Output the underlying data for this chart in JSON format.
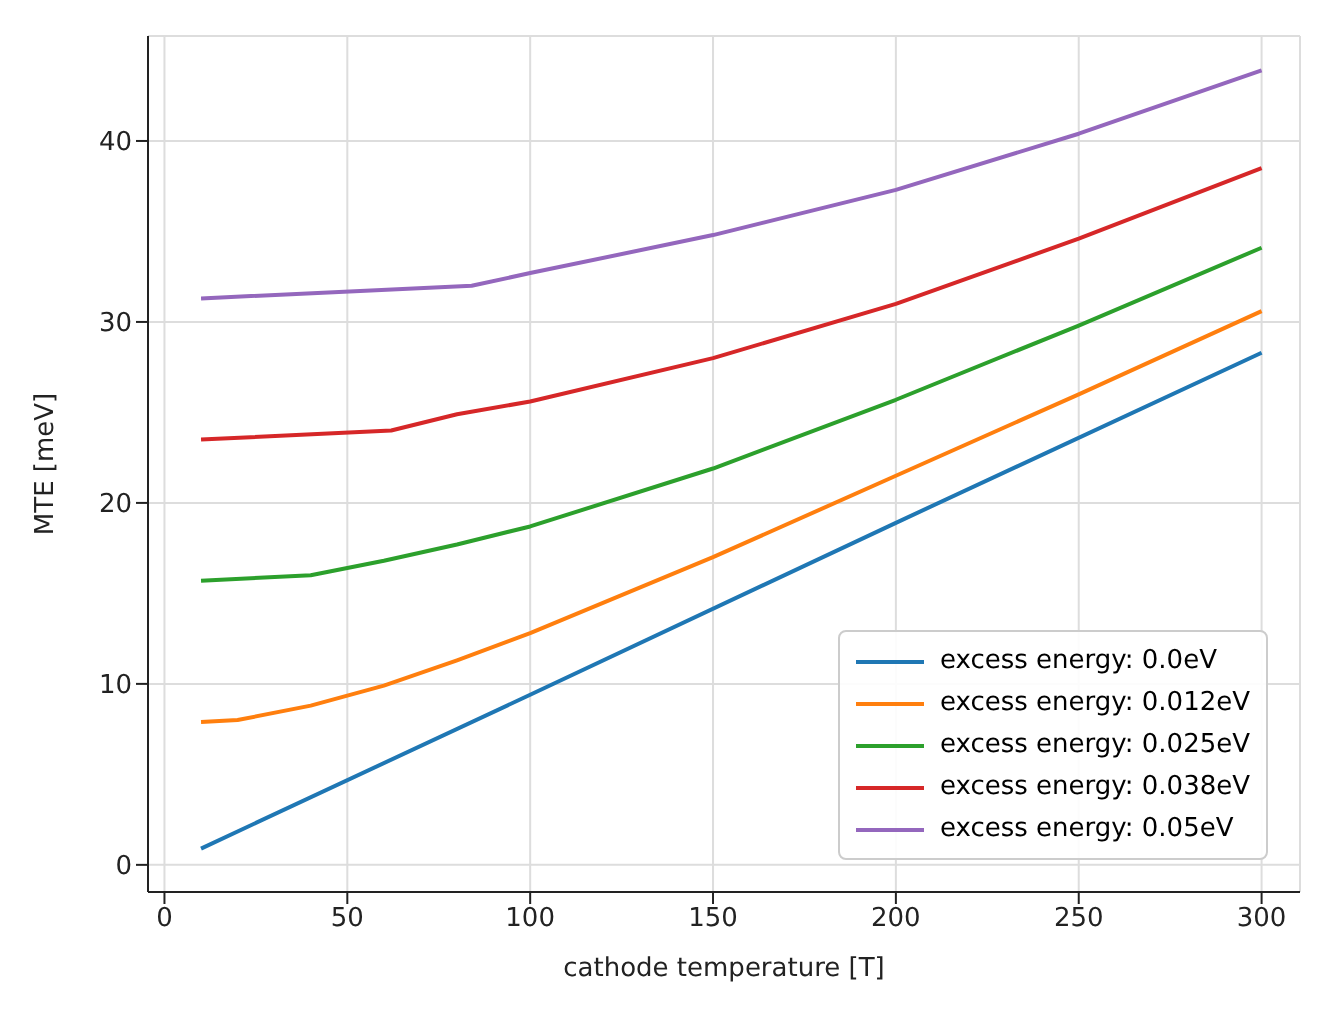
{
  "chart_data": {
    "type": "line",
    "xlabel": "cathode temperature [T]",
    "ylabel": "MTE [meV]",
    "xlim": [
      -4.5,
      310.5
    ],
    "xticks": [
      0,
      50,
      100,
      150,
      200,
      250,
      300
    ],
    "ylim": [
      -1.5,
      45.8
    ],
    "yticks": [
      0,
      10,
      20,
      30,
      40
    ],
    "grid": true,
    "legend": "bottom right",
    "line_style": "solid",
    "marker": "none",
    "series": [
      {
        "name": "excess energy: 0.0eV",
        "color": "#1f77b4",
        "x": [
          10,
          100,
          200,
          300
        ],
        "values": [
          0.9,
          9.4,
          18.9,
          28.3
        ]
      },
      {
        "name": "excess energy: 0.012eV",
        "color": "#ff7f0e",
        "x": [
          10,
          20,
          40,
          60,
          80,
          100,
          150,
          200,
          250,
          300
        ],
        "values": [
          7.9,
          8.0,
          8.8,
          9.9,
          11.3,
          12.8,
          17.0,
          21.5,
          26.0,
          30.6
        ]
      },
      {
        "name": "excess energy: 0.025eV",
        "color": "#2ca02c",
        "x": [
          10,
          40,
          60,
          80,
          100,
          150,
          200,
          250,
          300
        ],
        "values": [
          15.7,
          16.0,
          16.8,
          17.7,
          18.7,
          21.9,
          25.7,
          29.8,
          34.1
        ]
      },
      {
        "name": "excess energy: 0.038eV",
        "color": "#d62728",
        "x": [
          10,
          62,
          80,
          100,
          150,
          200,
          250,
          300
        ],
        "values": [
          23.5,
          24.0,
          24.9,
          25.6,
          28.0,
          31.0,
          34.6,
          38.5
        ]
      },
      {
        "name": "excess energy: 0.05eV",
        "color": "#9467bd",
        "x": [
          10,
          84,
          100,
          150,
          200,
          250,
          300
        ],
        "values": [
          31.3,
          32.0,
          32.7,
          34.8,
          37.3,
          40.4,
          43.9
        ]
      }
    ]
  }
}
